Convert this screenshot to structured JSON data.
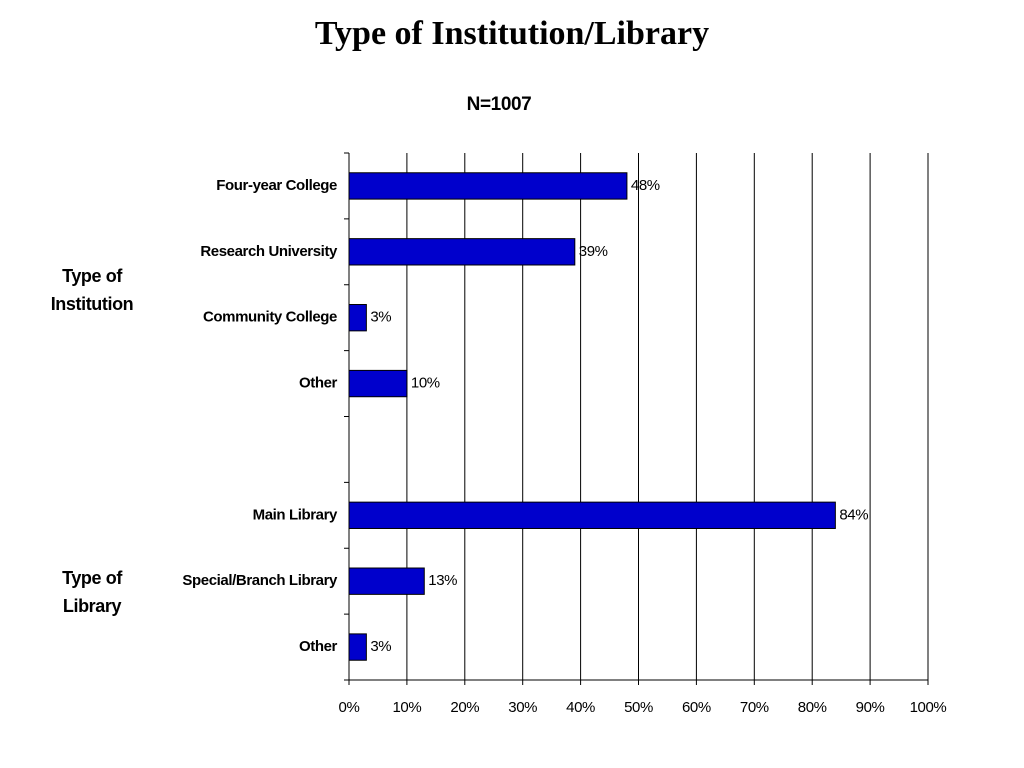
{
  "chart_data": {
    "type": "hbar",
    "title": "Type of Institution/Library",
    "subtitle": "N=1007",
    "categories": [
      "Four-year College",
      "Research University",
      "Community College",
      "Other",
      null,
      "Main Library",
      "Special/Branch Library",
      "Other"
    ],
    "values": [
      48,
      39,
      3,
      10,
      null,
      84,
      13,
      3
    ],
    "value_labels": [
      "48%",
      "39%",
      "3%",
      "10%",
      null,
      "84%",
      "13%",
      "3%"
    ],
    "color": "#0000cc",
    "xlim": [
      0,
      100
    ],
    "xticks": [
      {
        "value": 0,
        "label": "0%"
      },
      {
        "value": 10,
        "label": "10%"
      },
      {
        "value": 20,
        "label": "20%"
      },
      {
        "value": 30,
        "label": "30%"
      },
      {
        "value": 40,
        "label": "40%"
      },
      {
        "value": 50,
        "label": "50%"
      },
      {
        "value": 60,
        "label": "60%"
      },
      {
        "value": 70,
        "label": "70%"
      },
      {
        "value": 80,
        "label": "80%"
      },
      {
        "value": 90,
        "label": "90%"
      },
      {
        "value": 100,
        "label": "100%"
      }
    ],
    "grid": true,
    "annotations": [
      {
        "text": "Type of Institution"
      },
      {
        "text": "Type of Library"
      }
    ]
  }
}
